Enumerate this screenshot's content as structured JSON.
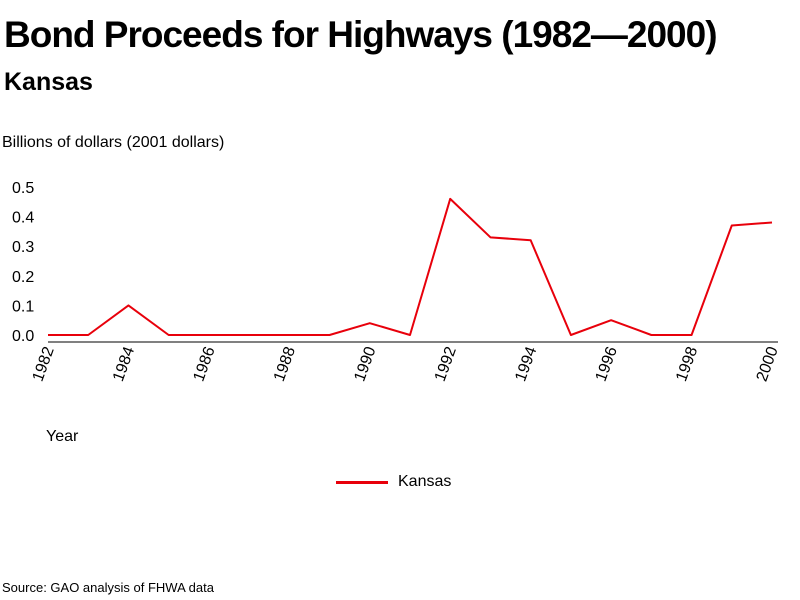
{
  "title": "Bond Proceeds for Highways (1982—2000)",
  "subtitle": "Kansas",
  "source": "Source: GAO analysis of FHWA data",
  "chart_data": {
    "type": "line",
    "title": "Bond Proceeds for Highways (1982—2000)",
    "subtitle": "Kansas",
    "ylabel": "Billions of dollars (2001 dollars)",
    "xlabel": "Year",
    "ylim": [
      0,
      0.5
    ],
    "yticks": [
      "0.0",
      "0.1",
      "0.2",
      "0.3",
      "0.4",
      "0.5"
    ],
    "xticks": [
      "1982",
      "1984",
      "1986",
      "1988",
      "1990",
      "1992",
      "1994",
      "1996",
      "1998",
      "2000"
    ],
    "grid": false,
    "legend_position": "bottom-center",
    "x": [
      1982,
      1983,
      1984,
      1985,
      1986,
      1987,
      1988,
      1989,
      1990,
      1991,
      1992,
      1993,
      1994,
      1995,
      1996,
      1997,
      1998,
      1999,
      2000
    ],
    "series": [
      {
        "name": "Kansas",
        "color": "#e8000b",
        "values": [
          0.0,
          0.0,
          0.1,
          0.0,
          0.0,
          0.0,
          0.0,
          0.0,
          0.04,
          0.0,
          0.46,
          0.33,
          0.32,
          0.0,
          0.05,
          0.0,
          0.0,
          0.37,
          0.38
        ]
      }
    ]
  }
}
